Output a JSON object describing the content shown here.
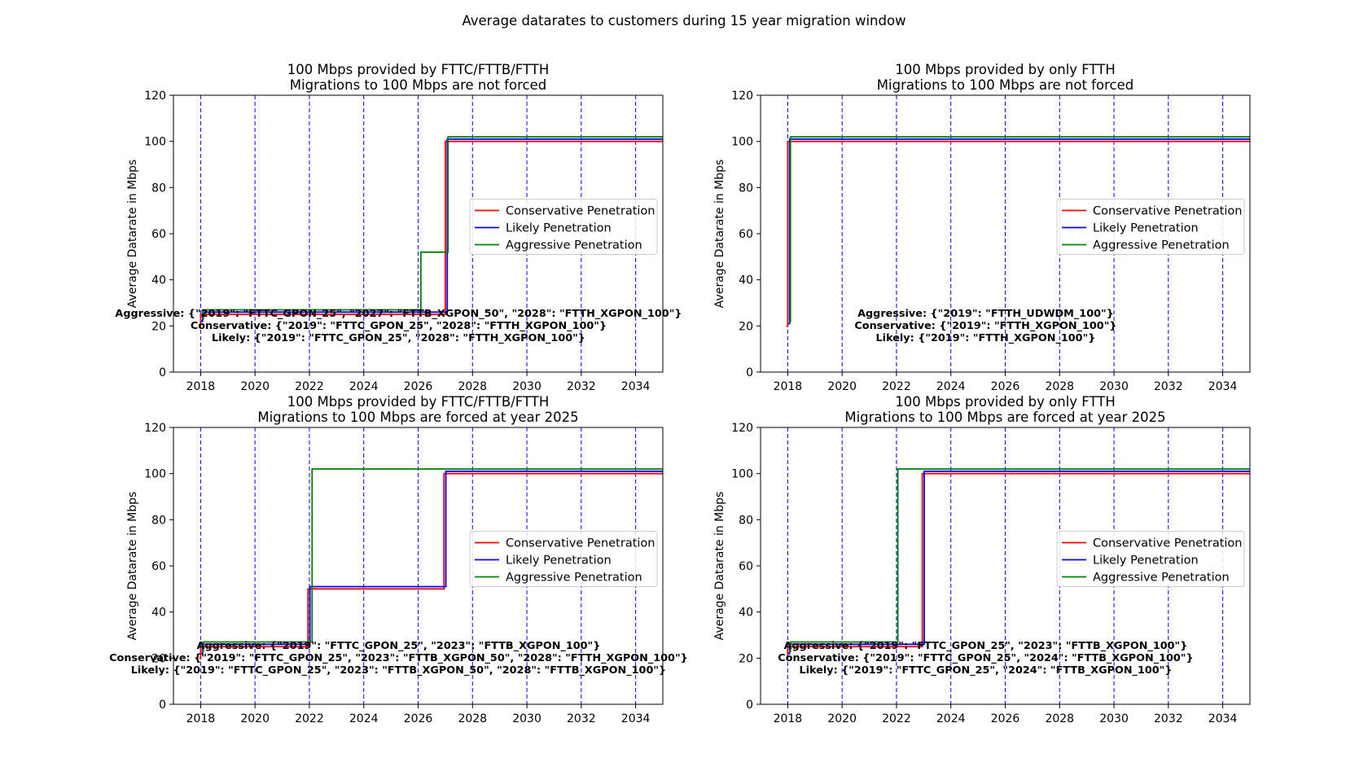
{
  "figure": {
    "suptitle": "Average datarates to customers during 15 year migration window"
  },
  "chart_data": [
    {
      "type": "line",
      "title": "100 Mbps provided by FTTC/FTTB/FTTH",
      "subtitle": "Migrations to 100 Mbps are not forced",
      "xlabel": "",
      "ylabel": "Average Datarate in Mbps",
      "xlim": [
        2017,
        2035
      ],
      "ylim": [
        0,
        120
      ],
      "xticks": [
        2018,
        2020,
        2022,
        2024,
        2026,
        2028,
        2030,
        2032,
        2034
      ],
      "yticks": [
        0,
        20,
        40,
        60,
        80,
        100,
        120
      ],
      "vlines": [
        2018,
        2020,
        2022,
        2024,
        2026,
        2028,
        2030,
        2032,
        2034
      ],
      "legend_position": "center-right",
      "series": [
        {
          "name": "Conservative Penetration",
          "color": "#ff0000",
          "step": "post",
          "x": [
            2017.95,
            2018,
            2027,
            2035
          ],
          "y": [
            20,
            25,
            100,
            100
          ]
        },
        {
          "name": "Likely Penetration",
          "color": "#0000ff",
          "step": "post",
          "x": [
            2018.02,
            2018.07,
            2027.07,
            2035
          ],
          "y": [
            22,
            26,
            101,
            101
          ]
        },
        {
          "name": "Aggressive Penetration",
          "color": "#007f00",
          "step": "post",
          "x": [
            2018.05,
            2018.1,
            2026.1,
            2027.1,
            2035
          ],
          "y": [
            23,
            27,
            52,
            102,
            102
          ]
        }
      ],
      "annotations": [
        "Aggressive:  {\"2019\": \"FTTC_GPON_25\", \"2027\": \"FTTB_XGPON_50\", \"2028\": \"FTTH_XGPON_100\"}",
        "Conservative:  {\"2019\": \"FTTC_GPON_25\", \"2028\": \"FTTH_XGPON_100\"}",
        "Likely:  {\"2019\": \"FTTC_GPON_25\", \"2028\": \"FTTH_XGPON_100\"}"
      ]
    },
    {
      "type": "line",
      "title": "100 Mbps provided by only FTTH",
      "subtitle": "Migrations to 100 Mbps are not forced",
      "xlabel": "",
      "ylabel": "Average Datarate in Mbps",
      "xlim": [
        2017,
        2035
      ],
      "ylim": [
        0,
        120
      ],
      "xticks": [
        2018,
        2020,
        2022,
        2024,
        2026,
        2028,
        2030,
        2032,
        2034
      ],
      "yticks": [
        0,
        20,
        40,
        60,
        80,
        100,
        120
      ],
      "vlines": [
        2018,
        2020,
        2022,
        2024,
        2026,
        2028,
        2030,
        2032,
        2034
      ],
      "legend_position": "center-right",
      "series": [
        {
          "name": "Conservative Penetration",
          "color": "#ff0000",
          "step": "post",
          "x": [
            2017.95,
            2018,
            2035
          ],
          "y": [
            20,
            100,
            100
          ]
        },
        {
          "name": "Likely Penetration",
          "color": "#0000ff",
          "step": "post",
          "x": [
            2018.02,
            2018.07,
            2035
          ],
          "y": [
            21,
            101,
            101
          ]
        },
        {
          "name": "Aggressive Penetration",
          "color": "#007f00",
          "step": "post",
          "x": [
            2018.05,
            2018.1,
            2035
          ],
          "y": [
            22,
            102,
            102
          ]
        }
      ],
      "annotations": [
        "Aggressive:  {\"2019\": \"FTTH_UDWDM_100\"}",
        "Conservative:  {\"2019\": \"FTTH_XGPON_100\"}",
        "Likely:  {\"2019\": \"FTTH_XGPON_100\"}"
      ]
    },
    {
      "type": "line",
      "title": "100 Mbps provided by FTTC/FTTB/FTTH",
      "subtitle": "Migrations to 100 Mbps are forced at year 2025",
      "xlabel": "",
      "ylabel": "Average Datarate in Mbps",
      "xlim": [
        2017,
        2035
      ],
      "ylim": [
        0,
        120
      ],
      "xticks": [
        2018,
        2020,
        2022,
        2024,
        2026,
        2028,
        2030,
        2032,
        2034
      ],
      "yticks": [
        0,
        20,
        40,
        60,
        80,
        100,
        120
      ],
      "vlines": [
        2018,
        2020,
        2022,
        2024,
        2026,
        2028,
        2030,
        2032,
        2034
      ],
      "legend_position": "center-right",
      "series": [
        {
          "name": "Conservative Penetration",
          "color": "#ff0000",
          "step": "post",
          "x": [
            2017.95,
            2018,
            2021.95,
            2026.95,
            2035
          ],
          "y": [
            20,
            25,
            50,
            100,
            100
          ]
        },
        {
          "name": "Likely Penetration",
          "color": "#0000ff",
          "step": "post",
          "x": [
            2018.02,
            2018.07,
            2022.02,
            2027.02,
            2035
          ],
          "y": [
            22,
            26,
            51,
            101,
            101
          ]
        },
        {
          "name": "Aggressive Penetration",
          "color": "#007f00",
          "step": "post",
          "x": [
            2018.05,
            2018.1,
            2022.1,
            2035
          ],
          "y": [
            23,
            27,
            102,
            102
          ]
        }
      ],
      "annotations": [
        "Aggressive:  {\"2019\": \"FTTC_GPON_25\", \"2023\": \"FTTB_XGPON_100\"}",
        "Conservative:  {\"2019\": \"FTTC_GPON_25\", \"2023\": \"FTTB_XGPON_50\", \"2028\": \"FTTH_XGPON_100\"}",
        "Likely:  {\"2019\": \"FTTC_GPON_25\", \"2023\": \"FTTB_XGPON_50\", \"2028\": \"FTTB_XGPON_100\"}"
      ]
    },
    {
      "type": "line",
      "title": "100 Mbps provided by only FTTH",
      "subtitle": "Migrations to 100 Mbps are forced at year 2025",
      "xlabel": "",
      "ylabel": "Average Datarate in Mbps",
      "xlim": [
        2017,
        2035
      ],
      "ylim": [
        0,
        120
      ],
      "xticks": [
        2018,
        2020,
        2022,
        2024,
        2026,
        2028,
        2030,
        2032,
        2034
      ],
      "yticks": [
        0,
        20,
        40,
        60,
        80,
        100,
        120
      ],
      "vlines": [
        2018,
        2020,
        2022,
        2024,
        2026,
        2028,
        2030,
        2032,
        2034
      ],
      "legend_position": "center-right",
      "series": [
        {
          "name": "Conservative Penetration",
          "color": "#ff0000",
          "step": "post",
          "x": [
            2017.95,
            2018,
            2022.95,
            2035
          ],
          "y": [
            20,
            25,
            100,
            100
          ]
        },
        {
          "name": "Likely Penetration",
          "color": "#0000ff",
          "step": "post",
          "x": [
            2018.02,
            2018.07,
            2023.02,
            2035
          ],
          "y": [
            22,
            26,
            101,
            101
          ]
        },
        {
          "name": "Aggressive Penetration",
          "color": "#007f00",
          "step": "post",
          "x": [
            2018.05,
            2018.1,
            2022.05,
            2035
          ],
          "y": [
            23,
            27,
            102,
            102
          ]
        }
      ],
      "annotations": [
        "Aggressive:  {\"2019\": \"FTTC_GPON_25\", \"2023\": \"FTTB_XGPON_100\"}",
        "Conservative:  {\"2019\": \"FTTC_GPON_25\", \"2024\": \"FTTB_XGPON_100\"}",
        "Likely:  {\"2019\": \"FTTC_GPON_25\", \"2024\": \"FTTB_XGPON_100\"}"
      ]
    }
  ]
}
